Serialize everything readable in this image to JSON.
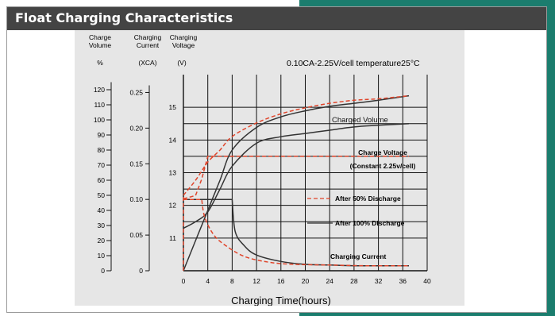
{
  "header": {
    "title": "Float Charging Characteristics"
  },
  "colors": {
    "header_bg": "#444444",
    "accent_teal": "#1b7d6e",
    "panel_bg": "#e6e6e6",
    "curve_100": "#333333",
    "curve_50": "#e0452b",
    "grid": "#111111"
  },
  "chart_data": {
    "type": "line",
    "title": "",
    "condition_text": "0.10CA-2.25V/cell   temperature25°C",
    "xlabel": "Charging Time(hours)",
    "x_ticks": [
      0,
      4,
      8,
      12,
      16,
      20,
      24,
      28,
      32,
      36,
      40
    ],
    "xlim": [
      0,
      40
    ],
    "grid": true,
    "axes": {
      "volume": {
        "header_lines": [
          "Charge",
          "Volume"
        ],
        "unit": "%",
        "range": [
          0,
          130
        ],
        "ticks": [
          0,
          10,
          20,
          30,
          40,
          50,
          60,
          70,
          80,
          90,
          100,
          110,
          120
        ]
      },
      "current": {
        "header_lines": [
          "Charging",
          "Current"
        ],
        "unit": "(XCA)",
        "range": [
          0,
          0.275
        ],
        "ticks": [
          "0",
          "0.05",
          "0.10",
          "0.15",
          "0.20",
          "0.25"
        ]
      },
      "voltage": {
        "header_lines": [
          "Charging",
          "Voltage"
        ],
        "unit": "(V)",
        "range": [
          10,
          16
        ],
        "ticks": [
          11,
          12,
          13,
          14,
          15
        ]
      }
    },
    "labels": {
      "charged_volume": "Charged Volume",
      "charge_voltage_1": "Charge Voltage",
      "charge_voltage_2": "(Constant 2.25v/cell)",
      "charging_current": "Charging Current"
    },
    "legend": [
      {
        "label": "After 50% Discharge",
        "style": "dashed",
        "color": "#e0452b"
      },
      {
        "label": "After 100% Discharge",
        "style": "solid",
        "color": "#333333"
      }
    ],
    "legend_placement": "right",
    "series": [
      {
        "name": "After 100% Discharge",
        "group": "charged_volume",
        "axis": "volume",
        "style": "solid",
        "x": [
          0,
          2,
          4,
          6,
          8,
          12,
          16,
          20,
          24,
          28,
          32,
          37
        ],
        "y": [
          0,
          20,
          40,
          60,
          80,
          95,
          102,
          106,
          109,
          111,
          113,
          116
        ]
      },
      {
        "name": "After 50% Discharge",
        "group": "charged_volume",
        "axis": "volume",
        "style": "dashed",
        "x": [
          0,
          2,
          4,
          6,
          8,
          12,
          16,
          20,
          24,
          28,
          32,
          37
        ],
        "y": [
          50,
          60,
          72,
          80,
          89,
          98,
          104,
          108,
          111,
          113,
          114,
          116
        ]
      },
      {
        "name": "After 100% Discharge",
        "group": "charge_voltage",
        "axis": "voltage",
        "style": "solid",
        "x": [
          0,
          2,
          4,
          6,
          8,
          12,
          16,
          20,
          24,
          28,
          32,
          37
        ],
        "y": [
          11.3,
          11.5,
          11.8,
          12.5,
          13.2,
          13.9,
          14.1,
          14.2,
          14.3,
          14.4,
          14.45,
          14.5
        ]
      },
      {
        "name": "After 50% Discharge",
        "group": "charge_voltage",
        "axis": "voltage",
        "style": "dashed",
        "x": [
          0,
          2,
          3,
          4,
          37
        ],
        "y": [
          12.2,
          12.3,
          12.8,
          13.5,
          13.5
        ]
      },
      {
        "name": "After 100% Discharge",
        "group": "charging_current",
        "axis": "current",
        "style": "solid",
        "x": [
          0,
          8,
          8.5,
          10,
          12,
          16,
          20,
          24,
          28,
          32,
          37
        ],
        "y": [
          0.1,
          0.1,
          0.055,
          0.035,
          0.022,
          0.013,
          0.009,
          0.008,
          0.007,
          0.007,
          0.007
        ]
      },
      {
        "name": "After 50% Discharge",
        "group": "charging_current",
        "axis": "current",
        "style": "dashed",
        "x": [
          0,
          3,
          3.5,
          5,
          7,
          10,
          14,
          18,
          24,
          30,
          37
        ],
        "y": [
          0.1,
          0.1,
          0.075,
          0.05,
          0.035,
          0.02,
          0.012,
          0.009,
          0.008,
          0.007,
          0.007
        ]
      }
    ]
  }
}
